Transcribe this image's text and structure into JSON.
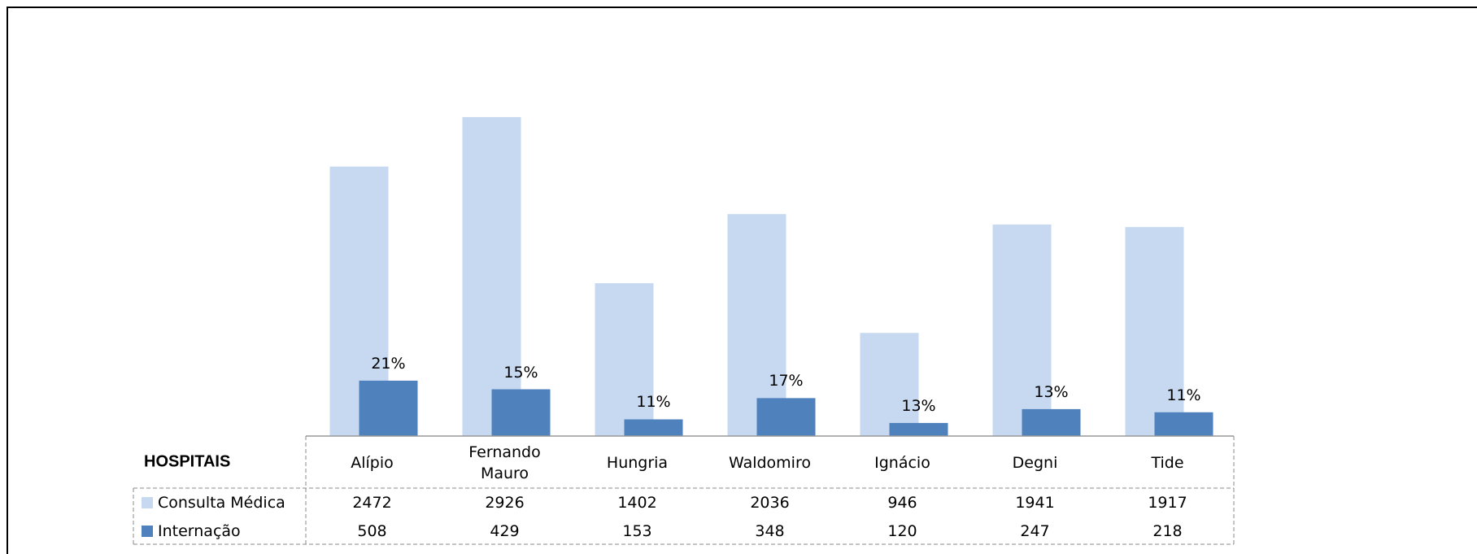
{
  "chart_data": {
    "type": "bar",
    "table_header": "HOSPITAIS",
    "categories": [
      "Alípio",
      "Fernando Mauro",
      "Hungria",
      "Waldomiro",
      "Ignácio",
      "Degni",
      "Tide"
    ],
    "series": [
      {
        "name": "Consulta Médica",
        "color": "#c6d9f1",
        "values": [
          2472,
          2926,
          1402,
          2036,
          946,
          1941,
          1917
        ]
      },
      {
        "name": "Internação",
        "color": "#4f81bd",
        "values": [
          508,
          429,
          153,
          348,
          120,
          247,
          218
        ],
        "percent_labels": [
          "21%",
          "15%",
          "11%",
          "17%",
          "13%",
          "13%",
          "11%"
        ]
      }
    ],
    "ylim": [
      0,
      3500
    ]
  }
}
